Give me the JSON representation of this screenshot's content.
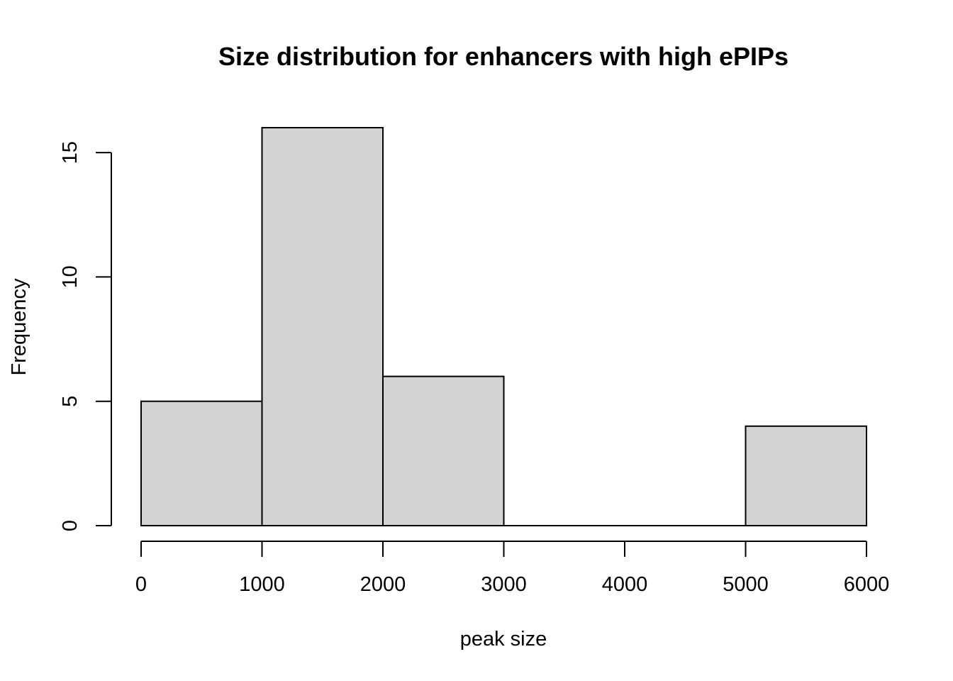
{
  "chart_data": {
    "type": "bar",
    "subtype": "histogram",
    "title": "Size distribution for enhancers with high ePIPs",
    "xlabel": "peak size",
    "ylabel": "Frequency",
    "bins": [
      {
        "start": 0,
        "end": 1000,
        "count": 5
      },
      {
        "start": 1000,
        "end": 2000,
        "count": 16
      },
      {
        "start": 2000,
        "end": 3000,
        "count": 6
      },
      {
        "start": 3000,
        "end": 4000,
        "count": 0
      },
      {
        "start": 4000,
        "end": 5000,
        "count": 0
      },
      {
        "start": 5000,
        "end": 6000,
        "count": 4
      }
    ],
    "x_ticks": [
      0,
      1000,
      2000,
      3000,
      4000,
      5000,
      6000
    ],
    "x_tick_labels": [
      "0",
      "1000",
      "2000",
      "3000",
      "4000",
      "5000",
      "6000"
    ],
    "y_ticks": [
      0,
      5,
      10,
      15
    ],
    "y_tick_labels": [
      "0",
      "5",
      "10",
      "15"
    ],
    "xlim": [
      0,
      6000
    ],
    "ylim": [
      0,
      16
    ],
    "grid": false,
    "legend": "none",
    "colors": {
      "bar_fill": "#d3d3d3",
      "bar_stroke": "#000000",
      "background": "#ffffff"
    }
  }
}
